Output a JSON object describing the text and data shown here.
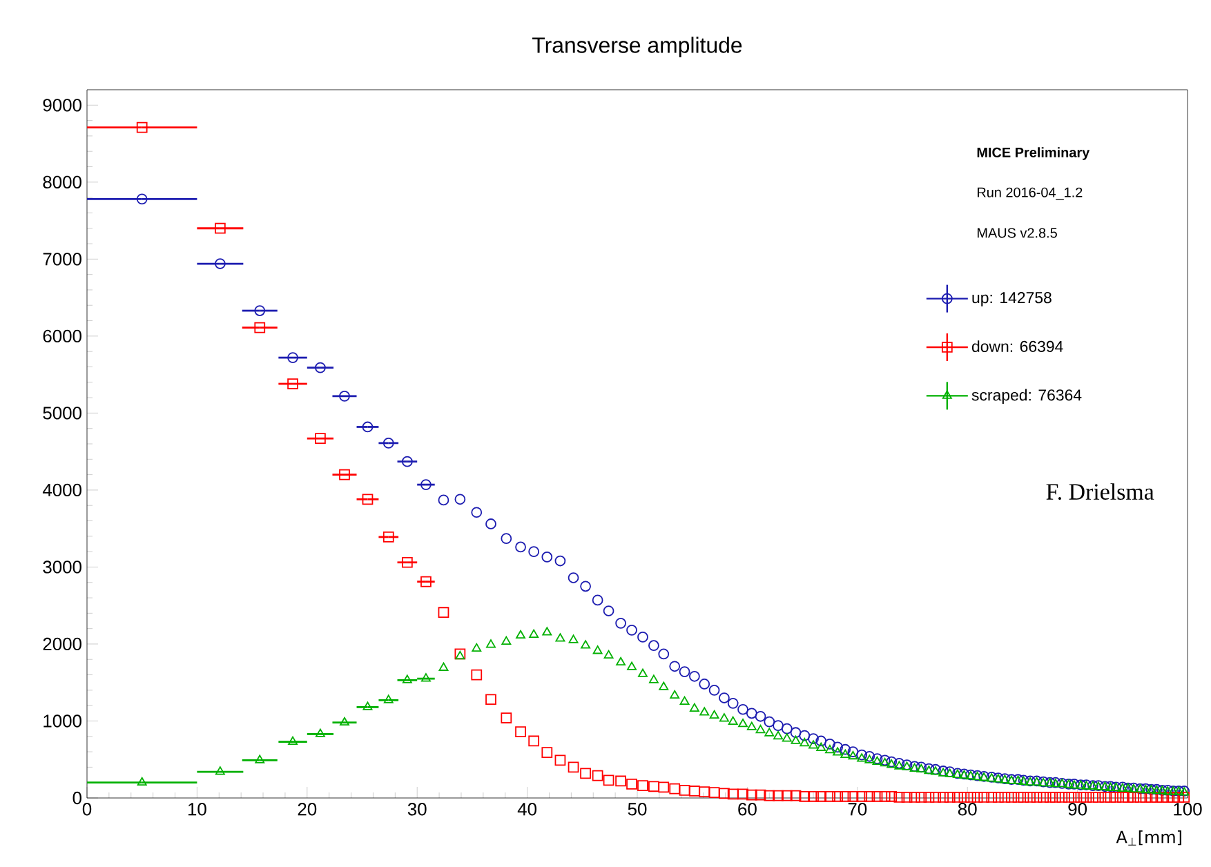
{
  "chart_data": {
    "type": "scatter",
    "title": "Transverse amplitude",
    "xlabel": "A$_{⊥}$[mm]",
    "x": [
      5,
      12.1,
      15.7,
      18.7,
      21.2,
      23.4,
      25.5,
      27.4,
      29.1,
      30.8,
      32.4,
      33.9,
      35.4,
      36.7,
      38.1,
      39.4,
      40.6,
      41.8,
      43.0,
      44.2,
      45.3,
      46.4,
      47.4,
      48.5,
      49.5,
      50.5,
      51.5,
      52.4,
      53.4,
      54.3,
      55.2,
      56.1,
      57.0,
      57.9,
      58.7,
      59.6,
      60.4,
      61.2,
      62.0,
      62.8,
      63.6,
      64.4,
      65.2,
      66.0,
      66.7,
      67.5,
      68.2,
      68.9,
      69.6,
      70.4,
      71.1,
      71.8,
      72.5,
      73.1,
      73.8,
      74.5,
      75.2,
      75.8,
      76.5,
      77.1,
      77.8,
      78.4,
      79.1,
      79.7,
      80.3,
      80.9,
      81.5,
      82.2,
      82.8,
      83.4,
      84.0,
      84.6,
      85.1,
      85.7,
      86.3,
      86.9,
      87.5,
      88.0,
      88.6,
      89.2,
      89.7,
      90.3,
      90.8,
      91.4,
      91.9,
      92.5,
      93.0,
      93.5,
      94.1,
      94.6,
      95.1,
      95.7,
      96.2,
      96.7,
      97.2,
      97.7,
      98.2,
      98.7,
      99.2,
      99.7
    ],
    "series": [
      {
        "name": "up: 142758",
        "color": "#1c1cb0",
        "marker": "circle",
        "values": [
          7780,
          6940,
          6330,
          5720,
          5590,
          5220,
          4820,
          4610,
          4370,
          4070,
          3870,
          3880,
          3710,
          3560,
          3370,
          3260,
          3200,
          3130,
          3080,
          2860,
          2750,
          2570,
          2430,
          2270,
          2180,
          2090,
          1980,
          1870,
          1710,
          1640,
          1580,
          1480,
          1400,
          1300,
          1230,
          1150,
          1100,
          1060,
          990,
          940,
          900,
          850,
          810,
          770,
          740,
          700,
          660,
          630,
          600,
          560,
          540,
          510,
          490,
          470,
          450,
          430,
          410,
          400,
          380,
          370,
          350,
          340,
          320,
          310,
          300,
          290,
          280,
          270,
          260,
          250,
          240,
          240,
          230,
          220,
          220,
          210,
          200,
          200,
          190,
          180,
          180,
          170,
          170,
          160,
          160,
          150,
          150,
          140,
          140,
          130,
          130,
          120,
          120,
          110,
          110,
          100,
          100,
          90,
          90,
          90
        ],
        "xerrors": [
          5,
          2.1,
          1.6,
          1.3,
          1.2,
          1.1,
          1,
          0.9,
          0.9,
          0.8,
          null,
          null,
          null,
          null,
          null,
          null,
          null,
          null,
          null,
          null,
          null,
          null,
          null,
          null,
          null,
          null,
          null,
          null,
          null,
          null,
          null,
          null,
          null,
          null,
          null,
          null,
          null,
          null,
          null,
          null,
          null,
          null,
          null,
          null,
          null,
          null,
          null,
          null,
          null,
          null,
          null,
          null,
          null,
          null,
          null,
          null,
          null,
          null,
          null,
          null,
          null,
          null,
          null,
          null,
          null,
          null,
          null,
          null,
          null,
          null,
          null,
          null,
          null,
          null,
          null,
          null,
          null,
          null,
          null,
          null,
          null,
          null,
          null,
          null,
          null,
          null,
          null,
          null,
          null,
          null,
          null,
          null,
          null,
          null,
          null,
          null,
          null,
          null,
          null,
          null
        ]
      },
      {
        "name": "down: 66394",
        "color": "#ff0000",
        "marker": "square",
        "values": [
          8710,
          7400,
          6110,
          5380,
          4670,
          4200,
          3880,
          3390,
          3060,
          2810,
          2410,
          1870,
          1600,
          1280,
          1040,
          860,
          740,
          590,
          490,
          400,
          320,
          290,
          230,
          220,
          180,
          160,
          150,
          140,
          120,
          100,
          90,
          80,
          70,
          60,
          50,
          50,
          40,
          40,
          30,
          30,
          30,
          30,
          20,
          20,
          20,
          20,
          20,
          20,
          20,
          20,
          20,
          20,
          20,
          20,
          10,
          10,
          10,
          10,
          10,
          10,
          10,
          10,
          10,
          10,
          10,
          10,
          10,
          10,
          10,
          10,
          10,
          10,
          10,
          10,
          10,
          10,
          10,
          10,
          10,
          10,
          10,
          10,
          10,
          10,
          10,
          10,
          10,
          10,
          10,
          10,
          10,
          10,
          10,
          10,
          10,
          10,
          10,
          10,
          10,
          10
        ],
        "xerrors": [
          5,
          2.1,
          1.6,
          1.3,
          1.2,
          1.1,
          1,
          0.9,
          0.9,
          0.8,
          null,
          null,
          null,
          null,
          null,
          null,
          null,
          null,
          null,
          null,
          null,
          null,
          null,
          null,
          null,
          null,
          null,
          null,
          null,
          null,
          null,
          null,
          null,
          null,
          null,
          null,
          null,
          null,
          null,
          null,
          null,
          null,
          null,
          null,
          null,
          null,
          null,
          null,
          null,
          null,
          null,
          null,
          null,
          null,
          null,
          null,
          null,
          null,
          null,
          null,
          null,
          null,
          null,
          null,
          null,
          null,
          null,
          null,
          null,
          null,
          null,
          null,
          null,
          null,
          null,
          null,
          null,
          null,
          null,
          null,
          null,
          null,
          null,
          null,
          null,
          null,
          null,
          null,
          null,
          null,
          null,
          null,
          null,
          null,
          null,
          null,
          null,
          null,
          null,
          null
        ]
      },
      {
        "name": "scraped: 76364",
        "color": "#00b000",
        "marker": "triangle",
        "values": [
          200,
          340,
          490,
          730,
          830,
          980,
          1180,
          1270,
          1530,
          1550,
          1690,
          1840,
          1940,
          1990,
          2030,
          2110,
          2120,
          2150,
          2070,
          2050,
          1980,
          1910,
          1850,
          1760,
          1700,
          1610,
          1530,
          1440,
          1330,
          1250,
          1160,
          1110,
          1070,
          1030,
          990,
          960,
          920,
          880,
          840,
          800,
          770,
          740,
          710,
          680,
          650,
          620,
          590,
          560,
          540,
          510,
          490,
          470,
          450,
          430,
          410,
          400,
          380,
          370,
          350,
          340,
          320,
          310,
          300,
          290,
          280,
          270,
          260,
          250,
          240,
          230,
          220,
          220,
          210,
          200,
          200,
          190,
          190,
          180,
          180,
          170,
          160,
          160,
          150,
          150,
          140,
          140,
          130,
          130,
          120,
          120,
          110,
          110,
          100,
          100,
          90,
          90,
          80,
          80,
          80,
          70
        ],
        "xerrors": [
          5,
          2.1,
          1.6,
          1.3,
          1.2,
          1.1,
          1,
          0.9,
          0.9,
          0.8,
          null,
          null,
          null,
          null,
          null,
          null,
          null,
          null,
          null,
          null,
          null,
          null,
          null,
          null,
          null,
          null,
          null,
          null,
          null,
          null,
          null,
          null,
          null,
          null,
          null,
          null,
          null,
          null,
          null,
          null,
          null,
          null,
          null,
          null,
          null,
          null,
          null,
          null,
          null,
          null,
          null,
          null,
          null,
          null,
          null,
          null,
          null,
          null,
          null,
          null,
          null,
          null,
          null,
          null,
          null,
          null,
          null,
          null,
          null,
          null,
          null,
          null,
          null,
          null,
          null,
          null,
          null,
          null,
          null,
          null,
          null,
          null,
          null,
          null,
          null,
          null,
          null,
          null,
          null,
          null,
          null,
          null,
          null,
          null,
          null,
          null,
          null,
          null,
          null,
          null
        ]
      }
    ],
    "xlim": [
      0,
      100
    ],
    "ylim": [
      0,
      9200
    ],
    "xticks": [
      0,
      10,
      20,
      30,
      40,
      50,
      60,
      70,
      80,
      90,
      100
    ],
    "yticks": [
      0,
      1000,
      2000,
      3000,
      4000,
      5000,
      6000,
      7000,
      8000,
      9000
    ],
    "grid": false,
    "legend": "top right",
    "annotations": [
      "MICE Preliminary",
      "Run 2016-04_1.2",
      "MAUS v2.8.5",
      "F. Drielsma"
    ]
  }
}
